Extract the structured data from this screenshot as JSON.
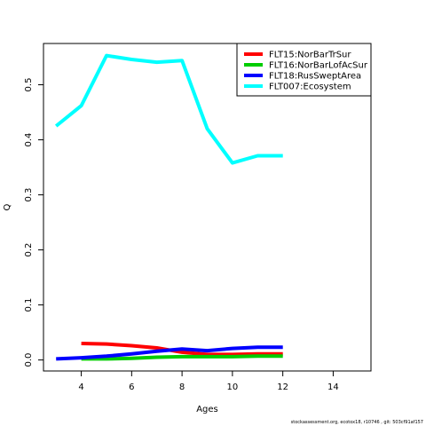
{
  "chart_data": {
    "type": "line",
    "xlabel": "Ages",
    "ylabel": "Q",
    "xlim": [
      2.5,
      15.5
    ],
    "ylim": [
      -0.02,
      0.575
    ],
    "x_ticks": [
      4,
      6,
      8,
      10,
      12,
      14
    ],
    "y_ticks": [
      0.0,
      0.1,
      0.2,
      0.3,
      0.4,
      0.5
    ],
    "y_tick_labels": [
      "0.0",
      "0.1",
      "0.2",
      "0.3",
      "0.4",
      "0.5"
    ],
    "grid": false,
    "legend_position": "top-right",
    "series": [
      {
        "name": "FLT15:NorBarTrSur",
        "color": "#ff0000",
        "x": [
          4,
          5,
          6,
          7,
          8,
          9,
          10,
          11,
          12
        ],
        "y": [
          0.03,
          0.029,
          0.026,
          0.022,
          0.014,
          0.01,
          0.01,
          0.011,
          0.011
        ]
      },
      {
        "name": "FLT16:NorBarLofAcSur",
        "color": "#00cd00",
        "x": [
          4,
          5,
          6,
          7,
          8,
          9,
          10,
          11,
          12
        ],
        "y": [
          0.002,
          0.002,
          0.003,
          0.005,
          0.006,
          0.006,
          0.006,
          0.007,
          0.007
        ]
      },
      {
        "name": "FLT18:RusSweptArea",
        "color": "#0000ff",
        "x": [
          3,
          4,
          5,
          6,
          7,
          8,
          9,
          10,
          11,
          12
        ],
        "y": [
          0.002,
          0.004,
          0.007,
          0.011,
          0.016,
          0.02,
          0.017,
          0.021,
          0.023,
          0.023
        ]
      },
      {
        "name": "FLT007:Ecosystem",
        "color": "#00ffff",
        "x": [
          3,
          4,
          5,
          6,
          7,
          8,
          9,
          10,
          11,
          12
        ],
        "y": [
          0.425,
          0.462,
          0.553,
          0.546,
          0.541,
          0.544,
          0.42,
          0.358,
          0.371,
          0.371
        ]
      }
    ]
  },
  "footer_text": "stockassessment.org, ecotox18, r10746 , git: 503cf91af157"
}
